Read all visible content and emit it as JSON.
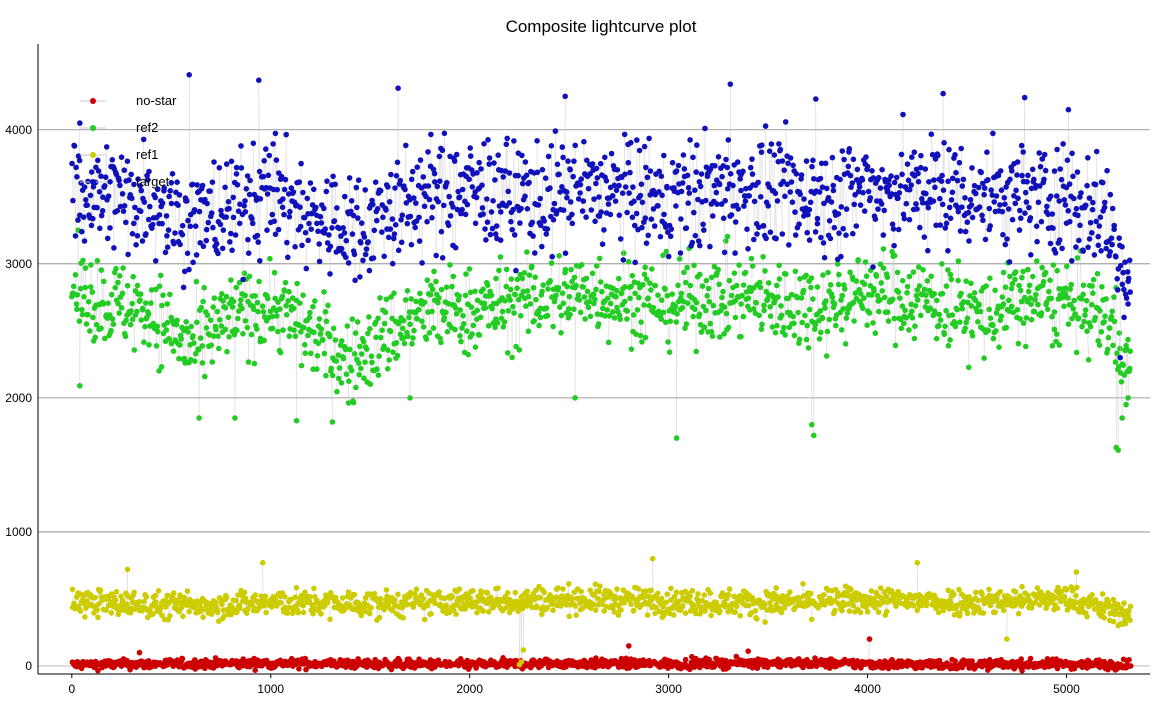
{
  "chart_data": {
    "type": "scatter",
    "title": "Composite lightcurve plot",
    "xlabel": "",
    "ylabel": "",
    "xlim": [
      -170,
      5420
    ],
    "ylim": [
      -60,
      4640
    ],
    "x_ticks": [
      0,
      1000,
      2000,
      3000,
      4000,
      5000
    ],
    "y_ticks": [
      0,
      1000,
      2000,
      3000,
      4000
    ],
    "grid": {
      "horizontal": true,
      "vertical": false
    },
    "legend_position": "top-left",
    "connector_color": "#c8c8c8",
    "series": [
      {
        "name": "no-star",
        "color": "#cc0000",
        "baseline": [
          [
            0,
            10
          ],
          [
            500,
            15
          ],
          [
            1000,
            20
          ],
          [
            1500,
            15
          ],
          [
            2000,
            10
          ],
          [
            2500,
            20
          ],
          [
            3000,
            15
          ],
          [
            3500,
            25
          ],
          [
            4000,
            15
          ],
          [
            4500,
            10
          ],
          [
            5000,
            15
          ],
          [
            5320,
            10
          ]
        ],
        "spread": 35,
        "outliers": [
          [
            2800,
            150
          ],
          [
            4010,
            200
          ],
          [
            3400,
            110
          ],
          [
            340,
            100
          ]
        ]
      },
      {
        "name": "ref2",
        "color": "#22cc22",
        "baseline": [
          [
            0,
            2800
          ],
          [
            200,
            2700
          ],
          [
            400,
            2650
          ],
          [
            600,
            2350
          ],
          [
            800,
            2600
          ],
          [
            1000,
            2700
          ],
          [
            1200,
            2500
          ],
          [
            1400,
            2250
          ],
          [
            1600,
            2500
          ],
          [
            1800,
            2650
          ],
          [
            2000,
            2650
          ],
          [
            2200,
            2700
          ],
          [
            2400,
            2750
          ],
          [
            2600,
            2800
          ],
          [
            2800,
            2750
          ],
          [
            3000,
            2700
          ],
          [
            3200,
            2750
          ],
          [
            3400,
            2750
          ],
          [
            3600,
            2700
          ],
          [
            3800,
            2700
          ],
          [
            4000,
            2800
          ],
          [
            4200,
            2750
          ],
          [
            4400,
            2700
          ],
          [
            4600,
            2600
          ],
          [
            4800,
            2750
          ],
          [
            5000,
            2700
          ],
          [
            5200,
            2600
          ],
          [
            5320,
            2250
          ]
        ],
        "spread": 320,
        "outliers": [
          [
            40,
            2090
          ],
          [
            640,
            1850
          ],
          [
            820,
            1850
          ],
          [
            1130,
            1830
          ],
          [
            1310,
            1820
          ],
          [
            1700,
            2000
          ],
          [
            2530,
            2000
          ],
          [
            3040,
            1700
          ],
          [
            3720,
            1800
          ],
          [
            3730,
            1720
          ],
          [
            5250,
            1630
          ],
          [
            5260,
            1610
          ],
          [
            5280,
            1850
          ],
          [
            5300,
            1950
          ],
          [
            5310,
            2000
          ]
        ]
      },
      {
        "name": "ref1",
        "color": "#cccc00",
        "baseline": [
          [
            0,
            480
          ],
          [
            500,
            450
          ],
          [
            1000,
            470
          ],
          [
            1500,
            460
          ],
          [
            2000,
            480
          ],
          [
            2500,
            500
          ],
          [
            3000,
            480
          ],
          [
            3500,
            470
          ],
          [
            4000,
            490
          ],
          [
            4500,
            480
          ],
          [
            5000,
            500
          ],
          [
            5320,
            380
          ]
        ],
        "spread": 100,
        "outliers": [
          [
            280,
            720
          ],
          [
            960,
            770
          ],
          [
            2920,
            800
          ],
          [
            4250,
            770
          ],
          [
            2260,
            30
          ],
          [
            2270,
            120
          ],
          [
            2250,
            10
          ],
          [
            4700,
            200
          ],
          [
            5050,
            700
          ]
        ]
      },
      {
        "name": "target",
        "color": "#1111bb",
        "baseline": [
          [
            0,
            3550
          ],
          [
            200,
            3500
          ],
          [
            400,
            3500
          ],
          [
            600,
            3300
          ],
          [
            800,
            3400
          ],
          [
            1000,
            3550
          ],
          [
            1200,
            3350
          ],
          [
            1400,
            3250
          ],
          [
            1600,
            3400
          ],
          [
            1800,
            3500
          ],
          [
            2000,
            3550
          ],
          [
            2200,
            3500
          ],
          [
            2400,
            3500
          ],
          [
            2600,
            3550
          ],
          [
            2800,
            3500
          ],
          [
            3000,
            3450
          ],
          [
            3200,
            3550
          ],
          [
            3400,
            3550
          ],
          [
            3600,
            3500
          ],
          [
            3800,
            3500
          ],
          [
            4000,
            3550
          ],
          [
            4200,
            3550
          ],
          [
            4400,
            3550
          ],
          [
            4600,
            3500
          ],
          [
            4800,
            3500
          ],
          [
            5000,
            3500
          ],
          [
            5200,
            3350
          ],
          [
            5320,
            2850
          ]
        ],
        "spread": 420,
        "outliers": [
          [
            590,
            4410
          ],
          [
            940,
            4370
          ],
          [
            1640,
            4310
          ],
          [
            2480,
            4250
          ],
          [
            3310,
            4340
          ],
          [
            3740,
            4230
          ],
          [
            4380,
            4270
          ],
          [
            4790,
            4240
          ],
          [
            5010,
            4150
          ],
          [
            5270,
            2300
          ],
          [
            5290,
            2600
          ],
          [
            5310,
            2700
          ],
          [
            40,
            4050
          ]
        ]
      }
    ]
  }
}
